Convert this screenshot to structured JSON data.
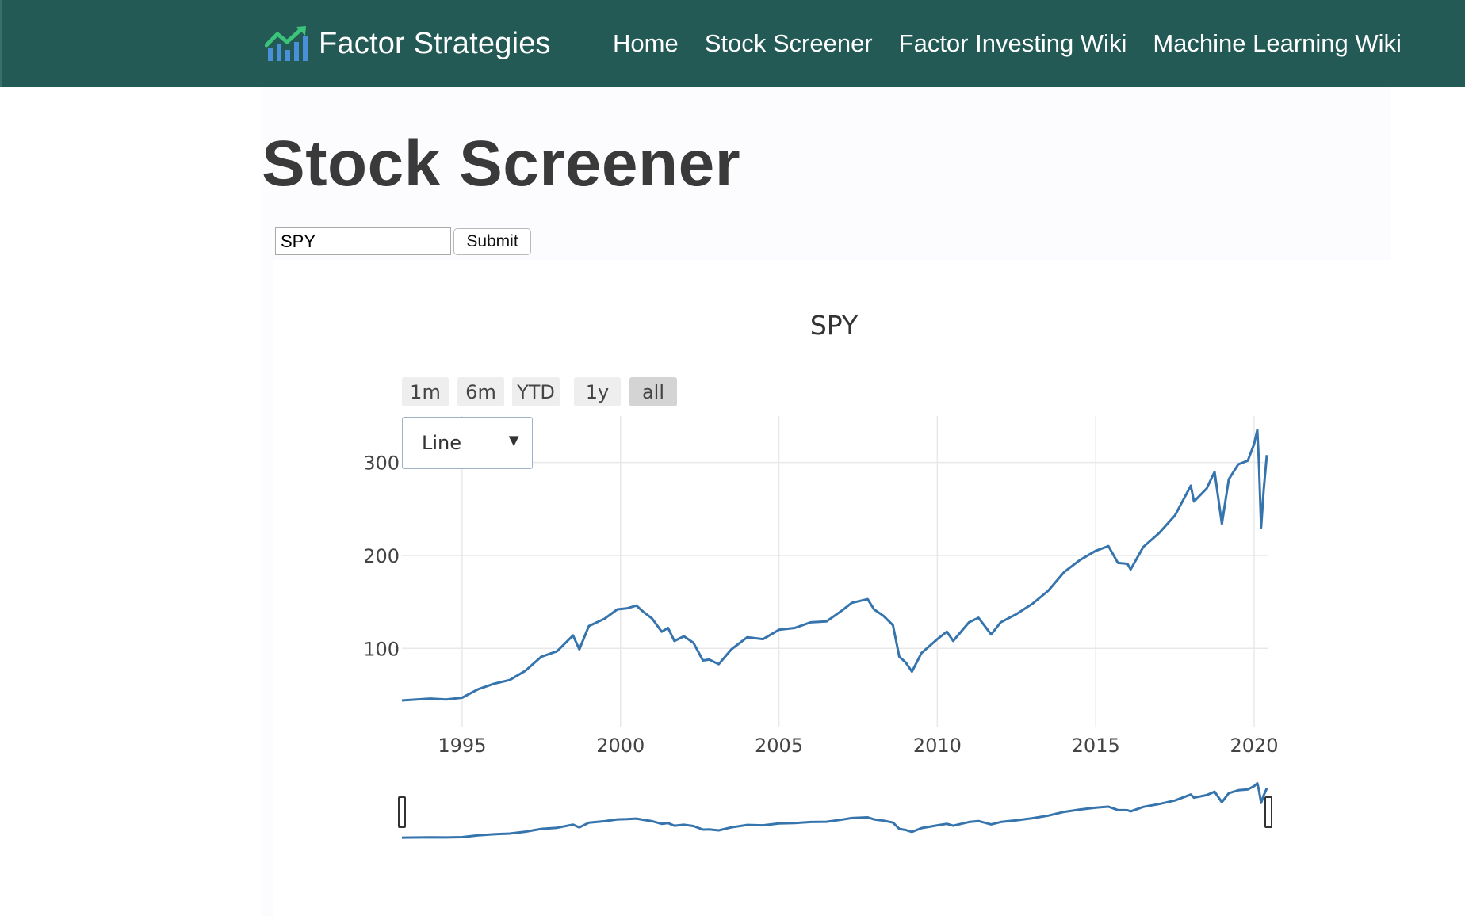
{
  "nav": {
    "brand": "Factor Strategies",
    "links": [
      "Home",
      "Stock Screener",
      "Factor Investing Wiki",
      "Machine Learning Wiki"
    ]
  },
  "page": {
    "title": "Stock Screener",
    "ticker_value": "SPY",
    "submit_label": "Submit"
  },
  "range_buttons": [
    "1m",
    "6m",
    "YTD",
    "1y",
    "all"
  ],
  "active_range": "all",
  "chart_type_dropdown": {
    "selected": "Line"
  },
  "colors": {
    "navbar": "#235a55",
    "line": "#3574ad",
    "grid": "#e8e8e8"
  },
  "icon": "bar-chart-trend-icon",
  "chart_data": {
    "type": "line",
    "title": "SPY",
    "xlabel": "",
    "ylabel": "",
    "xlim": [
      1993.1,
      2020.45
    ],
    "ylim": [
      15,
      350
    ],
    "x_ticks": [
      1995,
      2000,
      2005,
      2010,
      2015,
      2020
    ],
    "x_tick_labels": [
      "1995",
      "2000",
      "2005",
      "2010",
      "2015",
      "2020"
    ],
    "y_ticks": [
      100,
      200,
      300
    ],
    "y_tick_labels": [
      "100",
      "200",
      "300"
    ],
    "grid": true,
    "rangeslider": true,
    "series": [
      {
        "name": "SPY",
        "x": [
          1993.1,
          1994.0,
          1994.5,
          1995.0,
          1995.5,
          1996.0,
          1996.5,
          1997.0,
          1997.5,
          1998.0,
          1998.5,
          1998.7,
          1999.0,
          1999.5,
          1999.9,
          2000.2,
          2000.5,
          2000.7,
          2001.0,
          2001.3,
          2001.5,
          2001.7,
          2002.0,
          2002.3,
          2002.6,
          2002.8,
          2003.1,
          2003.5,
          2004.0,
          2004.5,
          2005.0,
          2005.5,
          2006.0,
          2006.5,
          2007.0,
          2007.3,
          2007.8,
          2008.0,
          2008.3,
          2008.6,
          2008.8,
          2009.0,
          2009.2,
          2009.5,
          2010.0,
          2010.3,
          2010.5,
          2011.0,
          2011.3,
          2011.7,
          2012.0,
          2012.5,
          2013.0,
          2013.5,
          2014.0,
          2014.5,
          2015.0,
          2015.4,
          2015.7,
          2016.0,
          2016.1,
          2016.5,
          2017.0,
          2017.5,
          2018.0,
          2018.1,
          2018.5,
          2018.75,
          2018.98,
          2019.2,
          2019.5,
          2019.8,
          2020.0,
          2020.1,
          2020.15,
          2020.22,
          2020.3,
          2020.4
        ],
        "y": [
          44,
          46,
          45,
          47,
          56,
          62,
          66,
          76,
          91,
          97,
          114,
          99,
          124,
          132,
          142,
          143,
          146,
          140,
          132,
          118,
          122,
          108,
          113,
          106,
          87,
          88,
          83,
          99,
          112,
          110,
          120,
          122,
          128,
          129,
          141,
          149,
          153,
          142,
          135,
          125,
          91,
          85,
          75,
          95,
          110,
          118,
          108,
          128,
          133,
          115,
          128,
          137,
          148,
          162,
          182,
          195,
          205,
          210,
          192,
          191,
          185,
          209,
          224,
          243,
          275,
          258,
          272,
          290,
          234,
          282,
          298,
          302,
          320,
          335,
          300,
          230,
          270,
          308
        ]
      }
    ]
  }
}
